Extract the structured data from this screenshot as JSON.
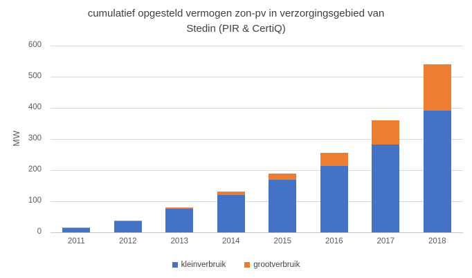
{
  "chart_data": {
    "type": "bar",
    "stacked": true,
    "title": "cumulatief opgesteld vermogen zon-pv in verzorgingsgebied van\nStedin (PIR & CertiQ)",
    "xlabel": "",
    "ylabel": "MW",
    "categories": [
      "2011",
      "2012",
      "2013",
      "2014",
      "2015",
      "2016",
      "2017",
      "2018"
    ],
    "series": [
      {
        "name": "kleinverbruik",
        "color": "#4472C4",
        "values": [
          15,
          36,
          75,
          120,
          168,
          214,
          283,
          391
        ]
      },
      {
        "name": "grootverbruik",
        "color": "#ED7D31",
        "values": [
          1,
          2,
          5,
          11,
          22,
          41,
          76,
          148
        ]
      }
    ],
    "totals": [
      16,
      38,
      80,
      131,
      190,
      255,
      359,
      539
    ],
    "ylim": [
      0,
      600
    ],
    "ytick_step": 100,
    "grid": true,
    "gridline_color": "#D9D9D9",
    "axis_line_color": "#C6C6C6",
    "title_color": "#404040",
    "tick_label_color": "#595959",
    "legend_position": "bottom"
  }
}
